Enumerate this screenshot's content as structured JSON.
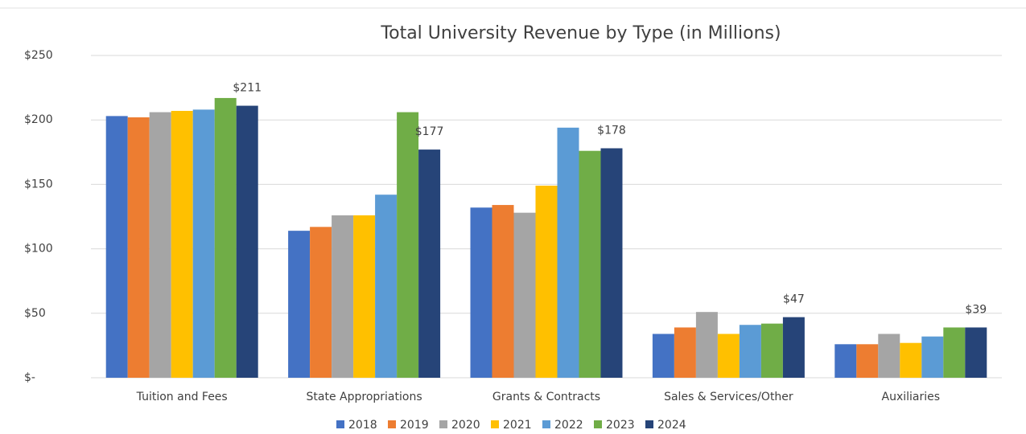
{
  "chart_data": {
    "type": "bar",
    "title": "Total University Revenue by Type (in Millions)",
    "categories": [
      "Tuition and Fees",
      "State Appropriations",
      "Grants & Contracts",
      "Sales & Services/Other",
      "Auxiliaries"
    ],
    "series": [
      {
        "name": "2018",
        "color": "#4472c4",
        "values": [
          203,
          114,
          132,
          34,
          26
        ]
      },
      {
        "name": "2019",
        "color": "#ed7d31",
        "values": [
          202,
          117,
          134,
          39,
          26
        ]
      },
      {
        "name": "2020",
        "color": "#a5a5a5",
        "values": [
          206,
          126,
          128,
          51,
          34
        ]
      },
      {
        "name": "2021",
        "color": "#ffc000",
        "values": [
          207,
          126,
          149,
          34,
          27
        ]
      },
      {
        "name": "2022",
        "color": "#5b9bd5",
        "values": [
          208,
          142,
          194,
          41,
          32
        ]
      },
      {
        "name": "2023",
        "color": "#70ad47",
        "values": [
          217,
          206,
          176,
          42,
          39
        ]
      },
      {
        "name": "2024",
        "color": "#264478",
        "values": [
          211,
          177,
          178,
          47,
          39
        ],
        "value_labels": [
          "$211",
          "$177",
          "$178",
          "$47",
          "$39"
        ]
      }
    ],
    "ylim": [
      0,
      250
    ],
    "yticks": [
      {
        "value": 0,
        "label": "$-"
      },
      {
        "value": 50,
        "label": "$50"
      },
      {
        "value": 100,
        "label": "$100"
      },
      {
        "value": 150,
        "label": "$150"
      },
      {
        "value": 200,
        "label": "$200"
      },
      {
        "value": 250,
        "label": "$250"
      }
    ],
    "grid": true,
    "legend": "bottom"
  }
}
